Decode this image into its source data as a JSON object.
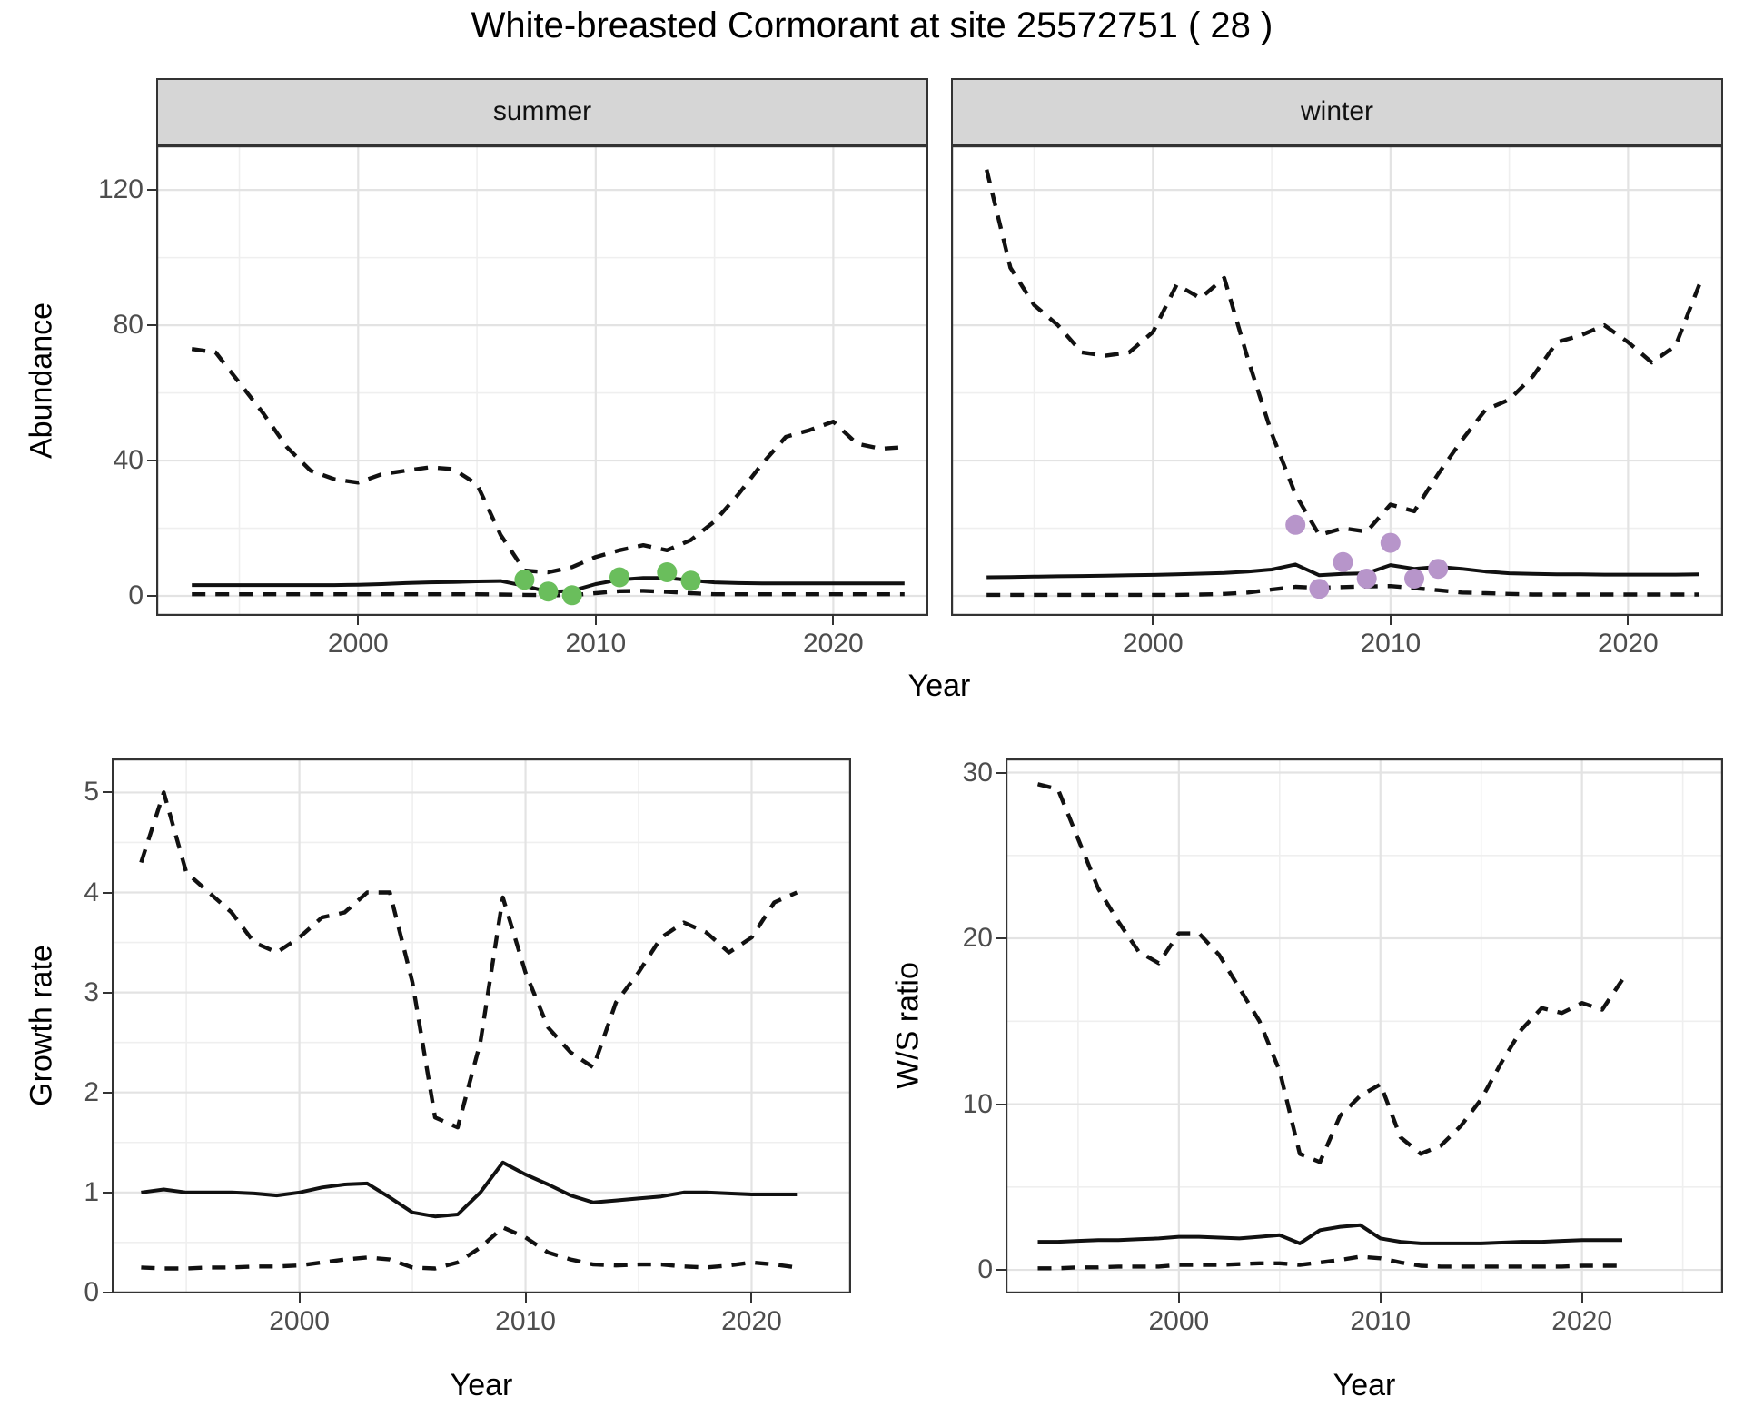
{
  "title": "White-breasted Cormorant at site 25572751 ( 28 )",
  "colors": {
    "summer_points": "#6abe5c",
    "winter_points": "#b795ca",
    "line": "#111111",
    "strip_background": "#d6d6d6",
    "panel_border": "#333333",
    "grid_major": "#e3e3e3",
    "grid_minor": "#efefef",
    "tick_text": "#4d4d4d"
  },
  "chart_data": {
    "type": "line",
    "title": "White-breasted Cormorant at site 25572751 ( 28 )",
    "grid": "on",
    "legend": "none",
    "panels": [
      {
        "id": "summer",
        "facet_label": "summer",
        "xlabel": "Year",
        "ylabel": "Abundance",
        "xlim": [
          1991.5,
          2024
        ],
        "ylim": [
          -5.9,
          133.2
        ],
        "x_ticks": [
          2000,
          2010,
          2020
        ],
        "x_tick_labels": [
          "2000",
          "2010",
          "2020"
        ],
        "x_minor": [
          1995,
          2005,
          2015
        ],
        "y_ticks": [
          0,
          40,
          80,
          120
        ],
        "y_tick_labels": [
          "0",
          "40",
          "80",
          "120"
        ],
        "y_minor": [
          20,
          60,
          100
        ],
        "years": [
          1993,
          1994,
          1995,
          1996,
          1997,
          1998,
          1999,
          2000,
          2001,
          2002,
          2003,
          2004,
          2005,
          2006,
          2007,
          2008,
          2009,
          2010,
          2011,
          2012,
          2013,
          2014,
          2015,
          2016,
          2017,
          2018,
          2019,
          2020,
          2021,
          2022,
          2023
        ],
        "series": [
          {
            "name": "upper-ci",
            "style": "dashed",
            "values": [
              73,
              72,
              63,
              54,
              44,
              37,
              34.5,
              33.5,
              36,
              37,
              38,
              37.5,
              33,
              18,
              7.5,
              7,
              8.5,
              11.5,
              13.5,
              15,
              13.5,
              16.5,
              22,
              30,
              39,
              47,
              49,
              51.5,
              45,
              43.5,
              44
            ]
          },
          {
            "name": "median",
            "style": "solid",
            "values": [
              3.2,
              3.2,
              3.2,
              3.2,
              3.2,
              3.2,
              3.2,
              3.3,
              3.5,
              3.8,
              4.0,
              4.1,
              4.3,
              4.4,
              3.0,
              1.2,
              1.5,
              3.5,
              4.8,
              5.3,
              5.3,
              4.6,
              4.0,
              3.8,
              3.7,
              3.7,
              3.7,
              3.7,
              3.7,
              3.7,
              3.7
            ]
          },
          {
            "name": "lower-ci",
            "style": "dashed",
            "values": [
              0.5,
              0.5,
              0.5,
              0.5,
              0.5,
              0.5,
              0.5,
              0.5,
              0.5,
              0.5,
              0.5,
              0.5,
              0.5,
              0.4,
              0.3,
              0.2,
              0.2,
              0.8,
              1.4,
              1.5,
              1.2,
              0.8,
              0.5,
              0.5,
              0.5,
              0.5,
              0.5,
              0.5,
              0.5,
              0.5,
              0.5
            ]
          }
        ],
        "observations": {
          "name": "summer-counts",
          "color": "#6abe5c",
          "points": [
            [
              2007,
              4.8
            ],
            [
              2008,
              1.3
            ],
            [
              2009,
              0.2
            ],
            [
              2011,
              5.5
            ],
            [
              2013,
              7.0
            ],
            [
              2014,
              4.5
            ]
          ]
        }
      },
      {
        "id": "winter",
        "facet_label": "winter",
        "xlabel": "Year",
        "ylabel": "",
        "xlim": [
          1991.5,
          2024
        ],
        "ylim": [
          -5.9,
          133.2
        ],
        "x_ticks": [
          2000,
          2010,
          2020
        ],
        "x_tick_labels": [
          "2000",
          "2010",
          "2020"
        ],
        "x_minor": [
          1995,
          2005,
          2015
        ],
        "y_ticks": [
          0,
          40,
          80,
          120
        ],
        "y_tick_labels": [
          "0",
          "40",
          "80",
          "120"
        ],
        "y_minor": [
          20,
          60,
          100
        ],
        "years": [
          1993,
          1994,
          1995,
          1996,
          1997,
          1998,
          1999,
          2000,
          2001,
          2002,
          2003,
          2004,
          2005,
          2006,
          2007,
          2008,
          2009,
          2010,
          2011,
          2012,
          2013,
          2014,
          2015,
          2016,
          2017,
          2018,
          2019,
          2020,
          2021,
          2022,
          2023
        ],
        "series": [
          {
            "name": "upper-ci",
            "style": "dashed",
            "values": [
              126,
              97,
              86,
              80,
              72,
              71,
              72,
              78,
              92,
              88,
              94,
              70,
              48,
              30,
              18,
              20,
              19,
              27,
              25,
              36,
              46,
              55,
              58,
              65,
              75,
              77,
              80,
              75,
              69,
              74,
              92
            ]
          },
          {
            "name": "median",
            "style": "solid",
            "values": [
              5.5,
              5.6,
              5.7,
              5.8,
              5.9,
              6.0,
              6.1,
              6.2,
              6.4,
              6.6,
              6.8,
              7.2,
              7.8,
              9.3,
              6.1,
              6.5,
              6.7,
              9.1,
              8.0,
              8.6,
              8.0,
              7.2,
              6.7,
              6.5,
              6.4,
              6.4,
              6.3,
              6.3,
              6.3,
              6.3,
              6.4
            ]
          },
          {
            "name": "lower-ci",
            "style": "dashed",
            "values": [
              0.3,
              0.3,
              0.3,
              0.3,
              0.3,
              0.3,
              0.3,
              0.3,
              0.3,
              0.4,
              0.6,
              1.0,
              1.9,
              2.7,
              2.4,
              2.6,
              2.8,
              2.9,
              2.3,
              1.7,
              1.0,
              0.8,
              0.6,
              0.4,
              0.4,
              0.4,
              0.4,
              0.4,
              0.4,
              0.4,
              0.4
            ]
          }
        ],
        "observations": {
          "name": "winter-counts",
          "color": "#b795ca",
          "points": [
            [
              2006,
              21
            ],
            [
              2007,
              2.1
            ],
            [
              2008,
              10
            ],
            [
              2009,
              5.1
            ],
            [
              2010,
              15.7
            ],
            [
              2011,
              5.1
            ],
            [
              2012,
              8
            ]
          ]
        }
      },
      {
        "id": "growth",
        "facet_label": "",
        "xlabel": "Year",
        "ylabel": "Growth rate",
        "xlim": [
          1991.7,
          2024.4
        ],
        "ylim": [
          -0.01,
          5.34
        ],
        "x_ticks": [
          2000,
          2010,
          2020
        ],
        "x_tick_labels": [
          "2000",
          "2010",
          "2020"
        ],
        "x_minor": [
          1995,
          2005,
          2015
        ],
        "y_ticks": [
          0,
          1,
          2,
          3,
          4,
          5
        ],
        "y_tick_labels": [
          "0",
          "1",
          "2",
          "3",
          "4",
          "5"
        ],
        "y_minor": [
          0.5,
          1.5,
          2.5,
          3.5,
          4.5
        ],
        "years": [
          1993,
          1994,
          1995,
          1996,
          1997,
          1998,
          1999,
          2000,
          2001,
          2002,
          2003,
          2004,
          2005,
          2006,
          2007,
          2008,
          2009,
          2010,
          2011,
          2012,
          2013,
          2014,
          2015,
          2016,
          2017,
          2018,
          2019,
          2020,
          2021,
          2022
        ],
        "series": [
          {
            "name": "upper-ci",
            "style": "dashed",
            "values": [
              4.3,
              5.0,
              4.2,
              4.0,
              3.8,
              3.5,
              3.4,
              3.55,
              3.75,
              3.8,
              4.0,
              4.0,
              3.1,
              1.75,
              1.65,
              2.5,
              3.95,
              3.2,
              2.65,
              2.4,
              2.25,
              2.9,
              3.2,
              3.55,
              3.7,
              3.6,
              3.4,
              3.55,
              3.9,
              4.0
            ]
          },
          {
            "name": "median",
            "style": "solid",
            "values": [
              1.0,
              1.03,
              1.0,
              1.0,
              1.0,
              0.99,
              0.97,
              1.0,
              1.05,
              1.08,
              1.09,
              0.95,
              0.8,
              0.76,
              0.78,
              1.0,
              1.3,
              1.18,
              1.08,
              0.97,
              0.9,
              0.92,
              0.94,
              0.96,
              1.0,
              1.0,
              0.99,
              0.98,
              0.98,
              0.98
            ]
          },
          {
            "name": "lower-ci",
            "style": "dashed",
            "values": [
              0.25,
              0.24,
              0.24,
              0.25,
              0.25,
              0.26,
              0.26,
              0.27,
              0.3,
              0.33,
              0.35,
              0.33,
              0.25,
              0.24,
              0.3,
              0.45,
              0.65,
              0.55,
              0.4,
              0.33,
              0.28,
              0.27,
              0.28,
              0.28,
              0.26,
              0.25,
              0.27,
              0.3,
              0.28,
              0.25
            ]
          }
        ]
      },
      {
        "id": "ws",
        "facet_label": "",
        "xlabel": "Year",
        "ylabel": "W/S ratio",
        "xlim": [
          1991.4,
          2027
        ],
        "ylim": [
          -1.42,
          30.85
        ],
        "x_ticks": [
          2000,
          2010,
          2020
        ],
        "x_tick_labels": [
          "2000",
          "2010",
          "2020"
        ],
        "x_minor": [
          1995,
          2005,
          2015,
          2025
        ],
        "y_ticks": [
          0,
          10,
          20,
          30
        ],
        "y_tick_labels": [
          "0",
          "10",
          "20",
          "30"
        ],
        "y_minor": [
          5,
          15,
          25
        ],
        "years": [
          1993,
          1994,
          1995,
          1996,
          1997,
          1998,
          1999,
          2000,
          2001,
          2002,
          2003,
          2004,
          2005,
          2006,
          2007,
          2008,
          2009,
          2010,
          2011,
          2012,
          2013,
          2014,
          2015,
          2016,
          2017,
          2018,
          2019,
          2020,
          2021,
          2022
        ],
        "series": [
          {
            "name": "upper-ci",
            "style": "dashed",
            "values": [
              29.3,
              29,
              26,
              23,
              21,
              19.2,
              18.5,
              20.3,
              20.3,
              19,
              17,
              15,
              12,
              7,
              6.5,
              9.3,
              10.5,
              11.2,
              8,
              7,
              7.5,
              8.7,
              10.3,
              12.5,
              14.5,
              15.8,
              15.5,
              16.1,
              15.7,
              17.5
            ]
          },
          {
            "name": "median",
            "style": "solid",
            "values": [
              1.7,
              1.7,
              1.75,
              1.8,
              1.8,
              1.85,
              1.9,
              2.0,
              2.0,
              1.95,
              1.9,
              2.0,
              2.1,
              1.6,
              2.4,
              2.6,
              2.7,
              1.9,
              1.7,
              1.6,
              1.6,
              1.6,
              1.6,
              1.65,
              1.7,
              1.7,
              1.75,
              1.8,
              1.8,
              1.8
            ]
          },
          {
            "name": "lower-ci",
            "style": "dashed",
            "values": [
              0.1,
              0.1,
              0.15,
              0.15,
              0.2,
              0.2,
              0.2,
              0.3,
              0.3,
              0.3,
              0.35,
              0.4,
              0.4,
              0.3,
              0.45,
              0.6,
              0.8,
              0.7,
              0.45,
              0.25,
              0.2,
              0.2,
              0.2,
              0.2,
              0.2,
              0.2,
              0.2,
              0.25,
              0.25,
              0.25
            ]
          }
        ]
      }
    ]
  }
}
